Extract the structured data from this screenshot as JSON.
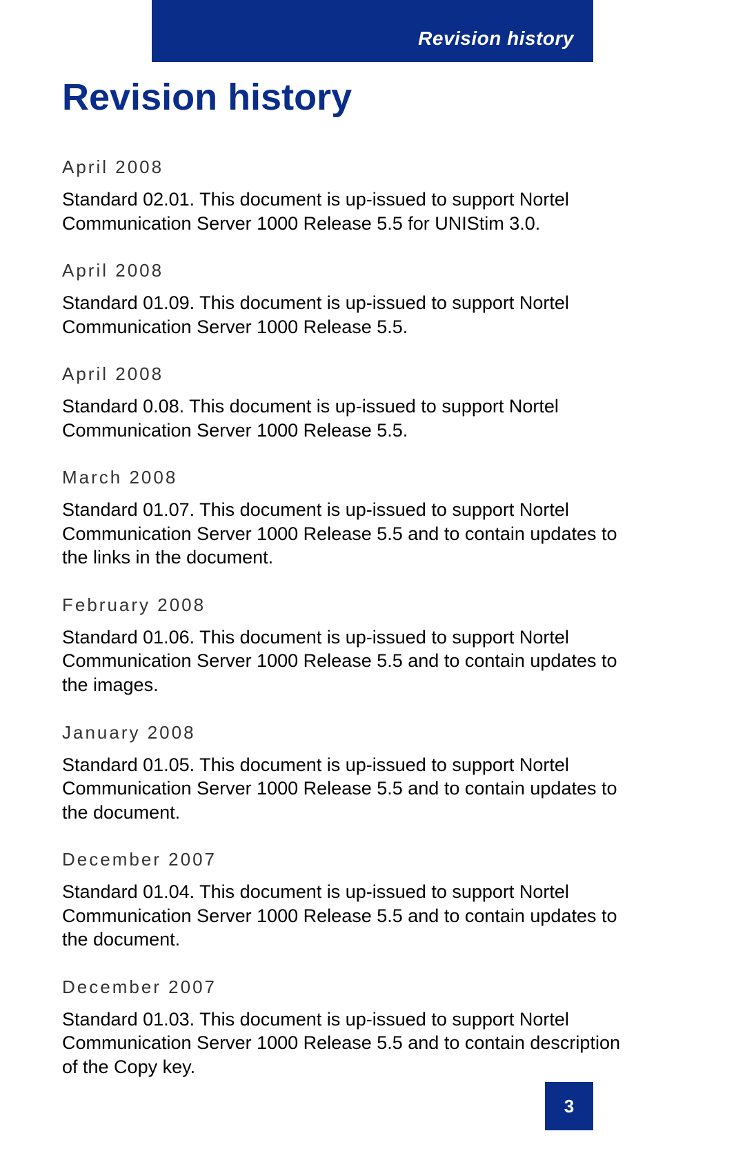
{
  "header": {
    "label": "Revision history"
  },
  "title": "Revision history",
  "entries": [
    {
      "date": "April 2008",
      "body": "Standard 02.01. This document is up-issued to support Nortel Communication Server 1000 Release 5.5 for UNIStim 3.0."
    },
    {
      "date": "April 2008",
      "body": "Standard 01.09. This document is up-issued to support Nortel Communication Server 1000 Release 5.5."
    },
    {
      "date": "April 2008",
      "body": "Standard 0.08. This document is up-issued to support Nortel Communication Server 1000 Release 5.5."
    },
    {
      "date": "March 2008",
      "body": "Standard 01.07. This document is up-issued to support Nortel Communication Server 1000 Release 5.5 and to contain updates to the links in the document."
    },
    {
      "date": "February 2008",
      "body": "Standard 01.06. This document is up-issued to support Nortel Communication Server 1000 Release 5.5 and to contain updates to the images."
    },
    {
      "date": "January 2008",
      "body": "Standard 01.05. This document is up-issued to support Nortel Communication Server 1000 Release 5.5 and to contain updates to the document."
    },
    {
      "date": "December 2007",
      "body": "Standard 01.04. This document is up-issued to support Nortel Communication Server 1000 Release 5.5 and to contain updates to the document."
    },
    {
      "date": "December 2007",
      "body": "Standard 01.03. This document is up-issued to support Nortel Communication Server 1000 Release 5.5 and to contain description of the Copy key."
    }
  ],
  "footer": {
    "page_number": "3"
  },
  "colors": {
    "brand_blue": "#0a2d8a",
    "white": "#ffffff",
    "text": "#000000",
    "date_text": "#333333"
  }
}
